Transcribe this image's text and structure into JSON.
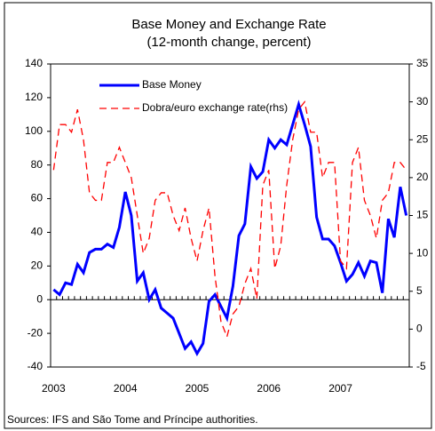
{
  "chart_data": {
    "type": "line",
    "title": "Base Money and Exchange Rate",
    "subtitle": "(12-month change, percent)",
    "source": "Sources: IFS and São Tome and Príncipe authorities.",
    "categories": [
      "2003",
      null,
      null,
      null,
      null,
      null,
      null,
      null,
      null,
      null,
      null,
      null,
      "2004",
      null,
      null,
      null,
      null,
      null,
      null,
      null,
      null,
      null,
      null,
      null,
      "2005",
      null,
      null,
      null,
      null,
      null,
      null,
      null,
      null,
      null,
      null,
      null,
      "2006",
      null,
      null,
      null,
      null,
      null,
      null,
      null,
      null,
      null,
      null,
      null,
      "2007",
      null,
      null,
      null,
      null,
      null,
      null,
      null,
      null,
      null,
      null,
      null
    ],
    "series": [
      {
        "name": "Base Money",
        "color": "#0000ff",
        "dash": false,
        "values": [
          6,
          3,
          10,
          9,
          21,
          16,
          28,
          30,
          30,
          33,
          31,
          43,
          64,
          50,
          11,
          16,
          0,
          6,
          -5,
          -8,
          -11,
          -20,
          -29,
          -25,
          -32,
          -26,
          -1,
          3,
          -4,
          -11,
          8,
          38,
          45,
          79,
          72,
          76,
          95,
          90,
          95,
          92,
          104,
          116,
          104,
          91,
          49,
          36,
          36,
          32,
          22,
          11,
          15,
          22,
          14,
          23,
          22,
          4,
          48,
          37,
          67,
          50
        ]
      },
      {
        "name": "Dobra/euro exchange rate(rhs)",
        "color": "#ff0000",
        "dash": true,
        "axis": "y2",
        "values": [
          21,
          27,
          27,
          26,
          29,
          25,
          18,
          17,
          17,
          22,
          22,
          24,
          22,
          20,
          15,
          10,
          12,
          17,
          18,
          18,
          15,
          13,
          16,
          12,
          9,
          13,
          16,
          7,
          1,
          -1,
          2,
          3,
          6,
          8,
          4,
          19,
          21,
          8,
          11,
          19,
          25,
          29,
          30,
          26,
          26,
          20,
          22,
          22,
          9,
          8,
          22,
          24,
          17,
          15,
          12,
          17,
          18,
          22,
          22,
          21
        ]
      }
    ],
    "ylim": [
      -40,
      140
    ],
    "yticks": [
      -40,
      -20,
      0,
      20,
      40,
      60,
      80,
      100,
      120,
      140
    ],
    "y2lim": [
      -5,
      35
    ],
    "y2ticks": [
      -5,
      0,
      5,
      10,
      15,
      20,
      25,
      30,
      35
    ],
    "legend": "top-left"
  }
}
